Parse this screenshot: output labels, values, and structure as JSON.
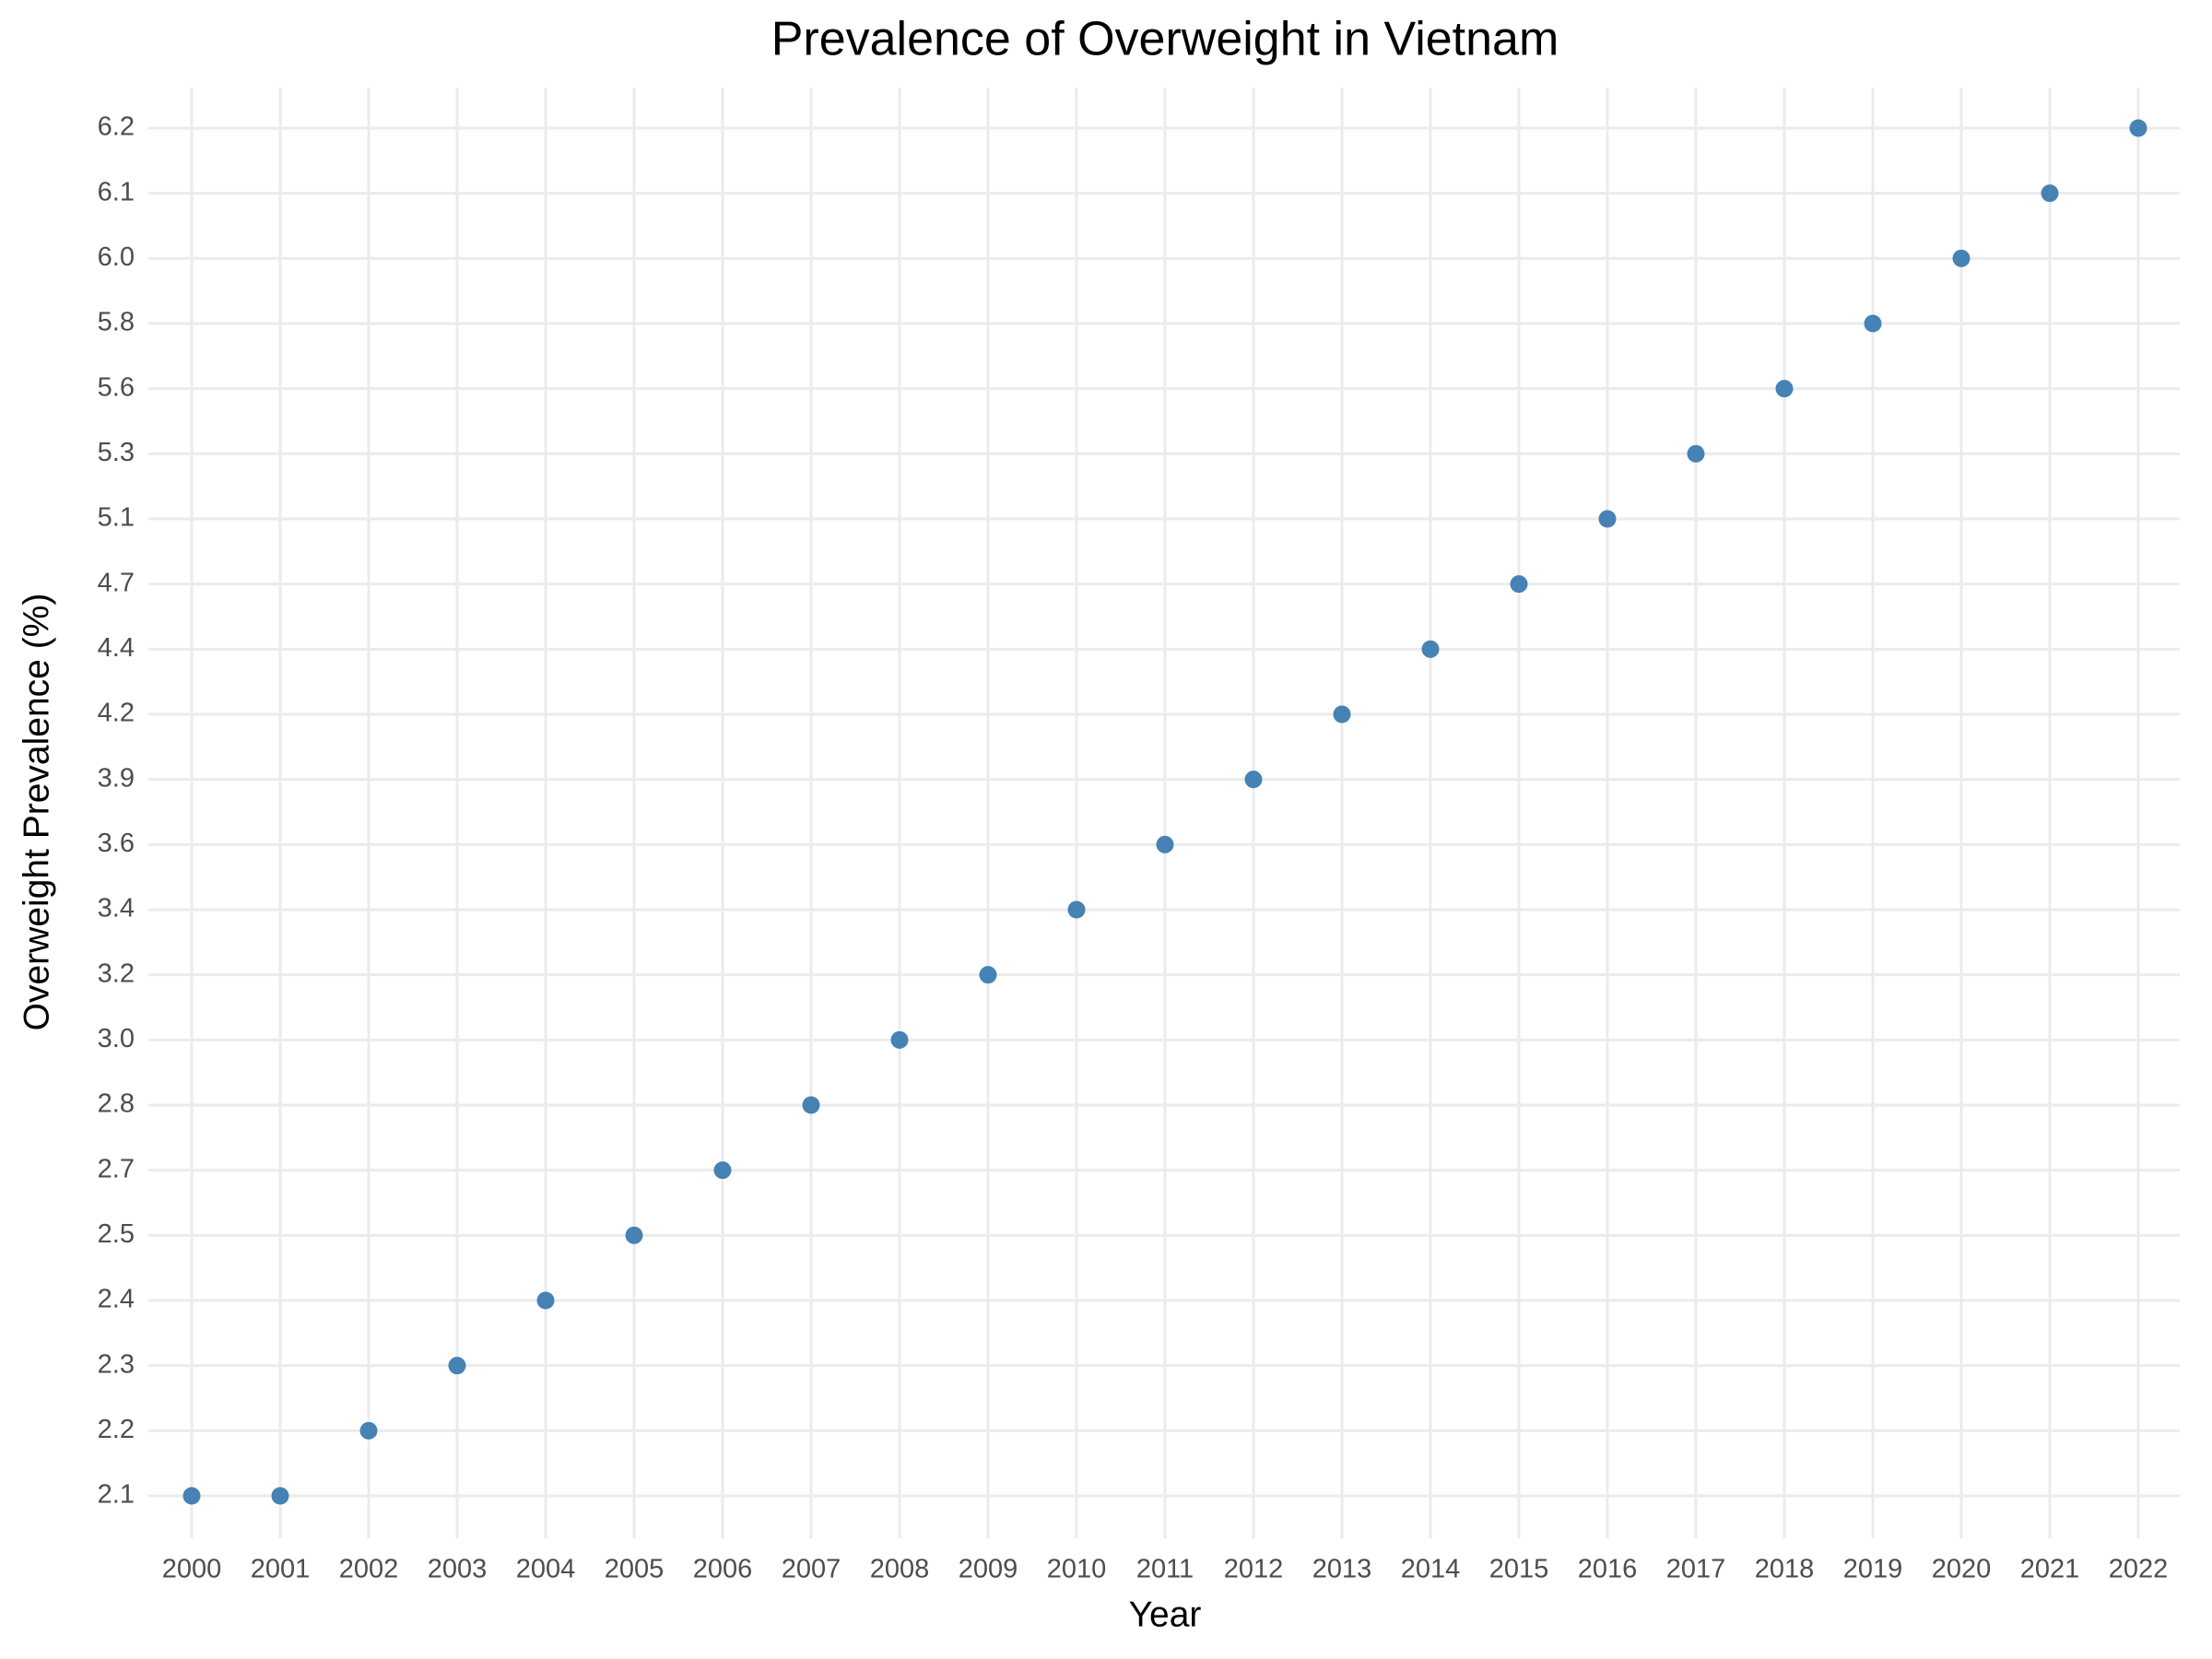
{
  "chart_data": {
    "type": "scatter",
    "title": "Prevalence of Overweight in Vietnam",
    "x_label": "Year",
    "y_label": "Overweight Prevalence (%)",
    "x": [
      2000,
      2001,
      2002,
      2003,
      2004,
      2005,
      2006,
      2007,
      2008,
      2009,
      2010,
      2011,
      2012,
      2013,
      2014,
      2015,
      2016,
      2017,
      2018,
      2019,
      2020,
      2021,
      2022
    ],
    "values": [
      2.1,
      2.1,
      2.2,
      2.3,
      2.4,
      2.5,
      2.7,
      2.8,
      3.0,
      3.2,
      3.4,
      3.6,
      3.9,
      4.2,
      4.4,
      4.7,
      5.1,
      5.3,
      5.6,
      5.8,
      6.0,
      6.1,
      6.2
    ],
    "color": "#4682b4",
    "xlim": [
      2000,
      2022
    ],
    "xticks": [
      2000,
      2001,
      2002,
      2003,
      2004,
      2005,
      2006,
      2007,
      2008,
      2009,
      2010,
      2011,
      2012,
      2013,
      2014,
      2015,
      2016,
      2017,
      2018,
      2019,
      2020,
      2021,
      2022
    ],
    "y_scale": "discrete",
    "yticks": [
      2.1,
      2.2,
      2.3,
      2.4,
      2.5,
      2.7,
      2.8,
      {
        "value": 3.0,
        "label": "3.0"
      },
      3.2,
      3.4,
      3.6,
      3.9,
      4.2,
      4.4,
      4.7,
      5.1,
      5.3,
      5.6,
      5.8,
      {
        "value": 6.0,
        "label": "6.0"
      },
      6.1,
      6.2
    ],
    "grid": true
  }
}
